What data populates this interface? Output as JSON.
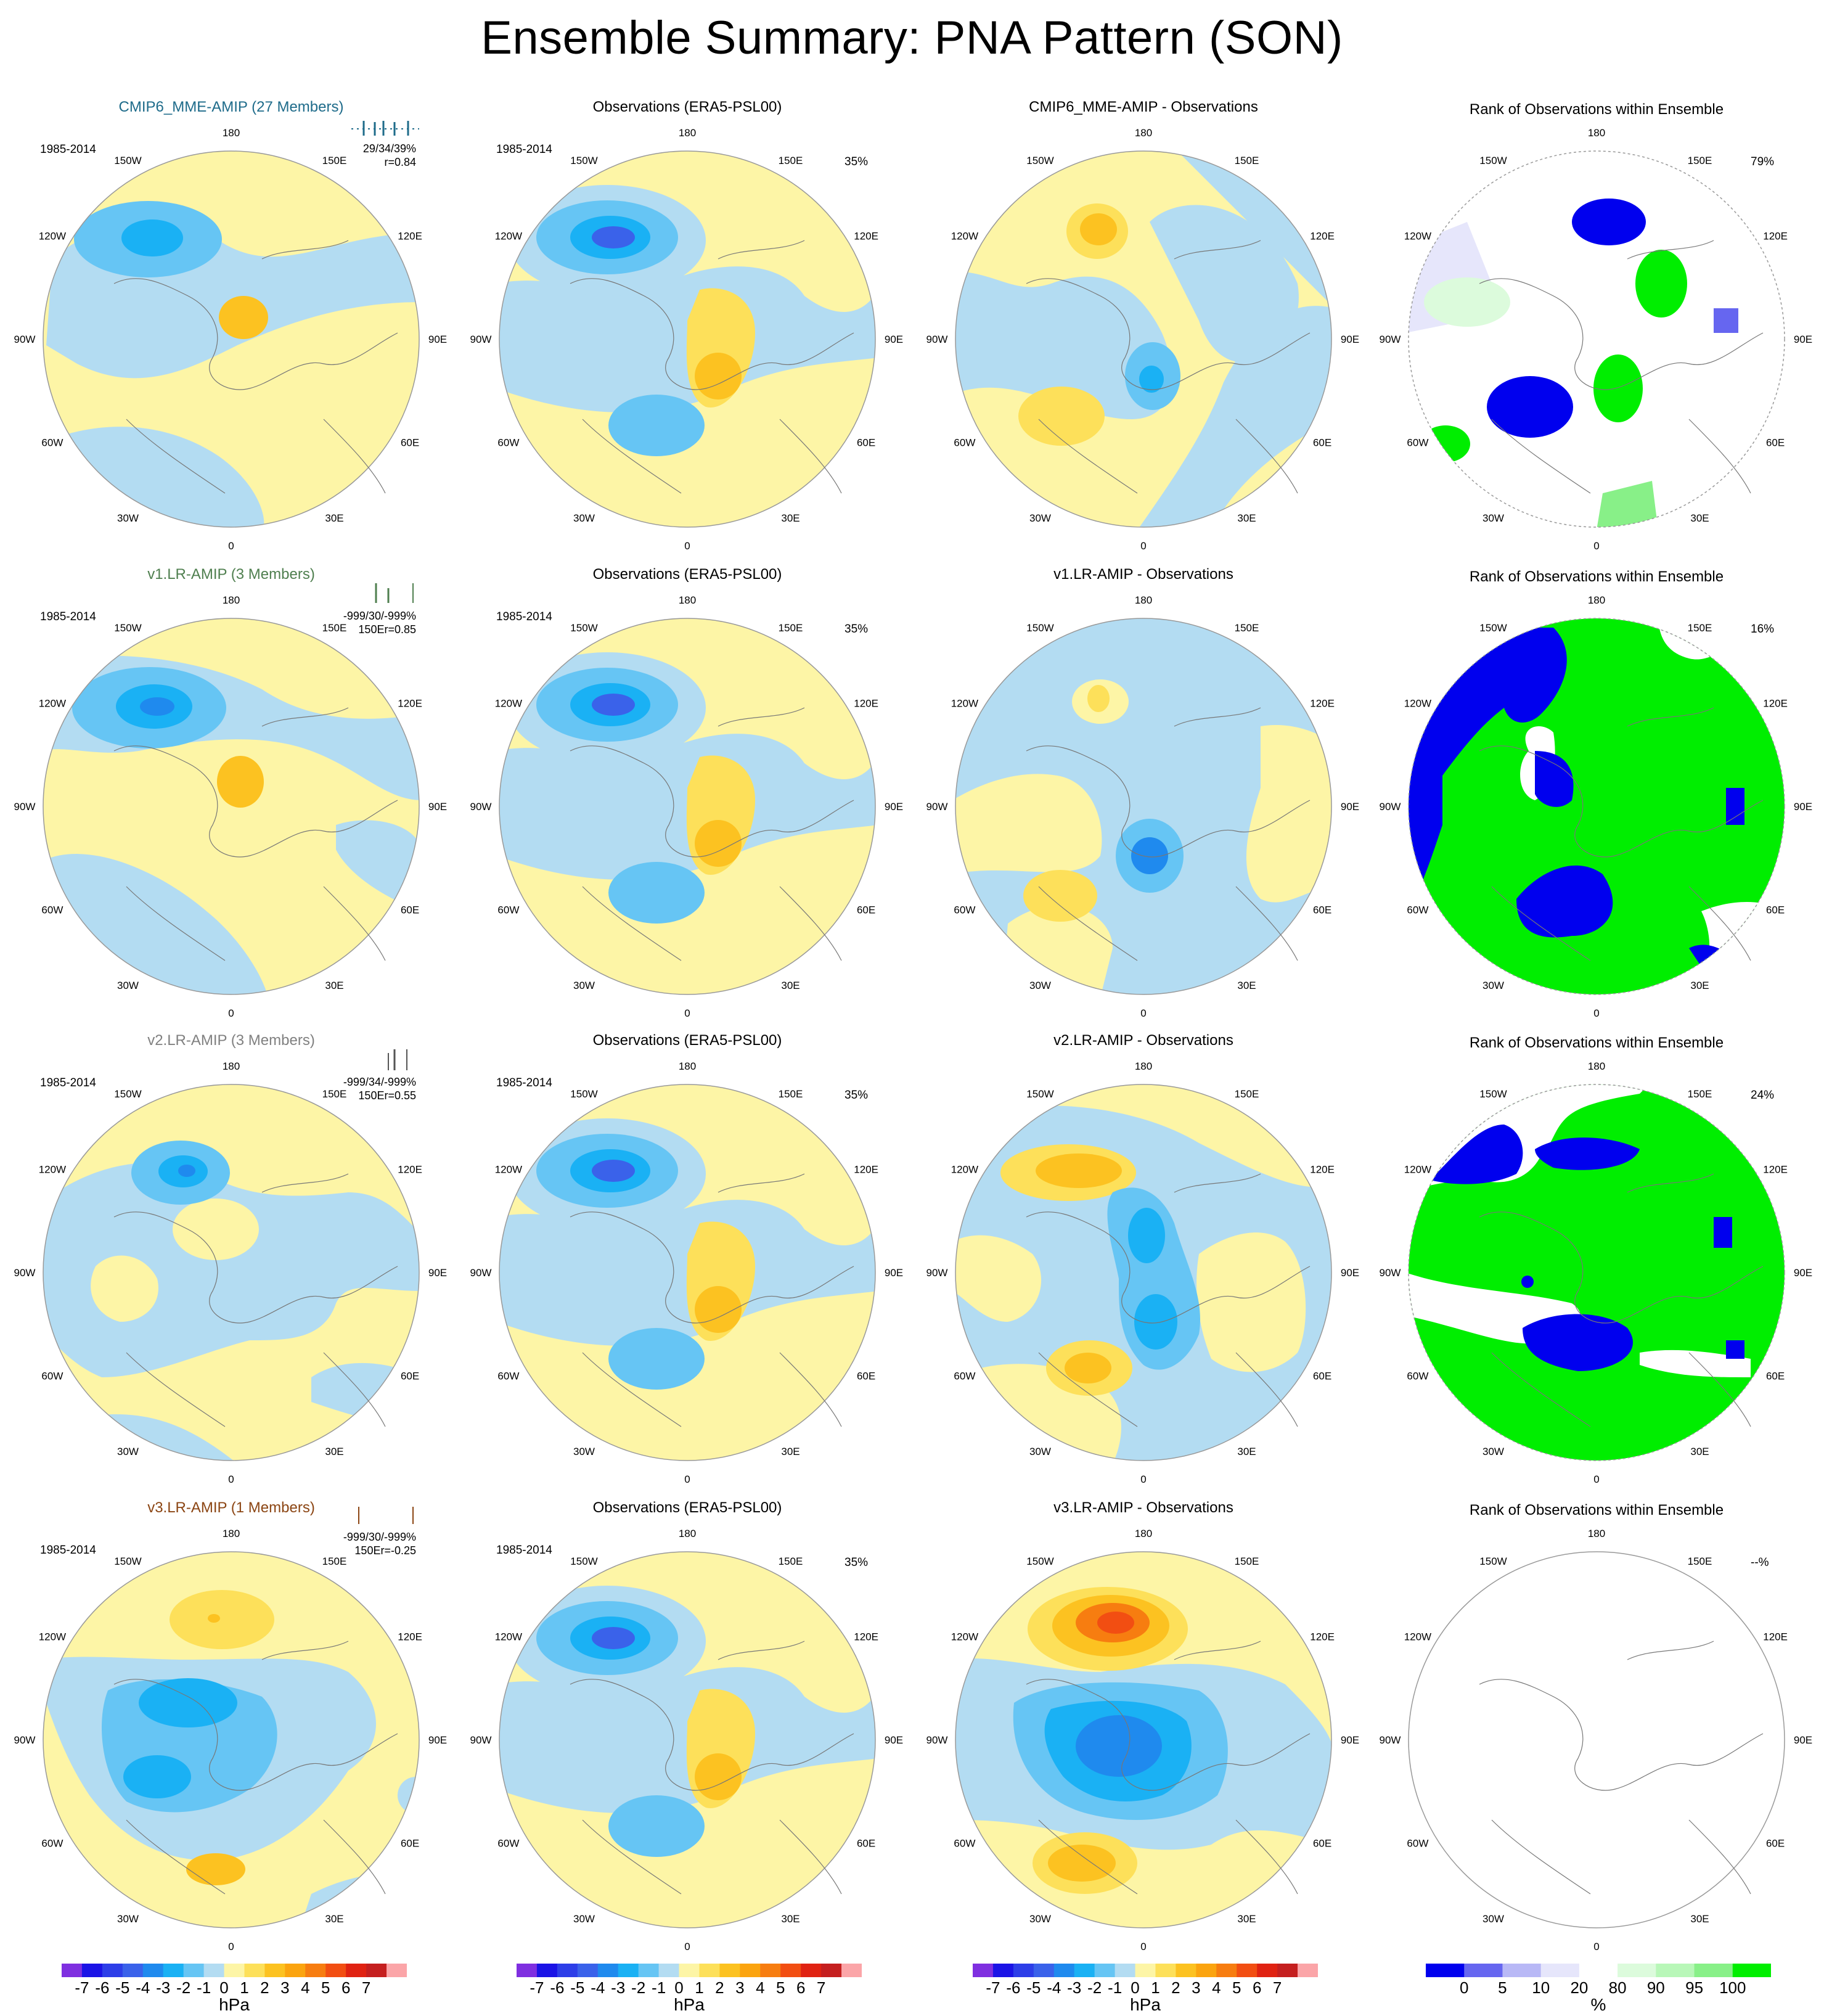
{
  "title": "Ensemble Summary: PNA Pattern (SON)",
  "colors": {
    "psl": [
      "#7f2fe0",
      "#1b13e6",
      "#2d3ee8",
      "#3a62ea",
      "#1f8aee",
      "#1ab1f4",
      "#66c5f4",
      "#b3dcf2",
      "#fdf5a6",
      "#fde05a",
      "#fcc221",
      "#fba40f",
      "#f77d10",
      "#f24e12",
      "#e02212",
      "#c51f1f",
      "#fba5a8"
    ],
    "rank": [
      "#0000ee",
      "#6666f0",
      "#b8b8f6",
      "#e6e6fb",
      "#ffffff",
      "#dcfbdc",
      "#b8f7b8",
      "#88f088",
      "#00ee00"
    ]
  },
  "rows": [
    {
      "model": {
        "title": "CMIP6_MME-AMIP (27 Members)",
        "title_color": "#1e6b8a",
        "period": "1985-2014",
        "stats": [
          "29/34/39%",
          "r=0.84"
        ],
        "tick_color": "#1e6b8a"
      },
      "obs": {
        "title": "Observations (ERA5-PSL00)",
        "period": "1985-2014",
        "pct": "35%"
      },
      "diff": {
        "title": "CMIP6_MME-AMIP - Observations"
      },
      "rank": {
        "title": "Rank of Observations within Ensemble",
        "pct": "79%"
      }
    },
    {
      "model": {
        "title": "v1.LR-AMIP (3 Members)",
        "title_color": "#4f7f4f",
        "period": "1985-2014",
        "stats": [
          "-999/30/-999%",
          "150Er=0.85"
        ],
        "tick_color": "#4f7f4f"
      },
      "obs": {
        "title": "Observations (ERA5-PSL00)",
        "period": "1985-2014",
        "pct": "35%"
      },
      "diff": {
        "title": "v1.LR-AMIP - Observations"
      },
      "rank": {
        "title": "Rank of Observations within Ensemble",
        "pct": "16%"
      }
    },
    {
      "model": {
        "title": "v2.LR-AMIP (3 Members)",
        "title_color": "#808080",
        "period": "1985-2014",
        "stats": [
          "-999/34/-999%",
          "150Er=0.55"
        ],
        "tick_color": "#555555"
      },
      "obs": {
        "title": "Observations (ERA5-PSL00)",
        "period": "1985-2014",
        "pct": "35%"
      },
      "diff": {
        "title": "v2.LR-AMIP - Observations"
      },
      "rank": {
        "title": "Rank of Observations within Ensemble",
        "pct": "24%"
      }
    },
    {
      "model": {
        "title": "v3.LR-AMIP (1 Members)",
        "title_color": "#8b4513",
        "period": "1985-2014",
        "stats": [
          "-999/30/-999%",
          "150Er=-0.25"
        ],
        "tick_color": "#8b4513"
      },
      "obs": {
        "title": "Observations (ERA5-PSL00)",
        "period": "1985-2014",
        "pct": "35%"
      },
      "diff": {
        "title": "v3.LR-AMIP - Observations"
      },
      "rank": {
        "title": "Rank of Observations within Ensemble",
        "pct": "--%"
      }
    }
  ],
  "lon_labels": [
    "180",
    "150E",
    "120E",
    "90E",
    "60E",
    "30E",
    "0",
    "30W",
    "60W",
    "90W",
    "120W",
    "150W"
  ],
  "colorbars": {
    "psl": {
      "ticks": [
        "-7",
        "-6",
        "-5",
        "-4",
        "-3",
        "-2",
        "-1",
        "0",
        "1",
        "2",
        "3",
        "4",
        "5",
        "6",
        "7"
      ],
      "unit": "hPa"
    },
    "rank": {
      "ticks": [
        "0",
        "5",
        "10",
        "20",
        "80",
        "90",
        "95",
        "100"
      ],
      "unit": "%"
    }
  }
}
